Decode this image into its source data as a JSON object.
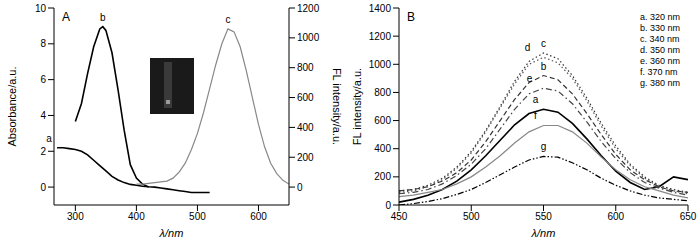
{
  "chart_data": [
    {
      "type": "line",
      "panel_label": "A",
      "xlabel": "λ/nm",
      "ylabel": "Absorbance/a.u.",
      "y2label": "FL intensity/a.u.",
      "xlim": [
        265,
        650
      ],
      "xticks": [
        300,
        400,
        500,
        600
      ],
      "ylim": [
        -1,
        10
      ],
      "yticks": [
        0,
        2,
        4,
        6,
        8,
        10
      ],
      "y2lim": [
        -120,
        1200
      ],
      "y2ticks": [
        0,
        200,
        400,
        600,
        800,
        1000,
        1200
      ],
      "series": [
        {
          "name": "a",
          "color": "#000000",
          "line_style": "solid",
          "axis": "y",
          "x": [
            270,
            280,
            290,
            300,
            310,
            320,
            330,
            340,
            350,
            360,
            370,
            380,
            390,
            400,
            410,
            420,
            430,
            440,
            450,
            460,
            470,
            480,
            490,
            500,
            510,
            520
          ],
          "values": [
            2.2,
            2.2,
            2.15,
            2.1,
            2.0,
            1.8,
            1.5,
            1.2,
            0.9,
            0.6,
            0.4,
            0.25,
            0.15,
            0.1,
            0.05,
            0.02,
            0,
            -0.05,
            -0.1,
            -0.15,
            -0.2,
            -0.25,
            -0.3,
            -0.3,
            -0.3,
            -0.3
          ]
        },
        {
          "name": "b",
          "color": "#000000",
          "line_style": "solid",
          "axis": "y2",
          "x": [
            300,
            310,
            320,
            330,
            340,
            345,
            350,
            360,
            370,
            380,
            390,
            400,
            410,
            420
          ],
          "values": [
            440,
            560,
            760,
            940,
            1060,
            1075,
            1050,
            900,
            650,
            380,
            150,
            60,
            20,
            0
          ]
        },
        {
          "name": "c",
          "color": "#888888",
          "line_style": "solid",
          "axis": "y2",
          "x": [
            400,
            410,
            420,
            430,
            440,
            450,
            460,
            470,
            480,
            490,
            500,
            510,
            520,
            530,
            540,
            550,
            560,
            570,
            580,
            590,
            600,
            610,
            620,
            630,
            640,
            650
          ],
          "values": [
            20,
            20,
            25,
            30,
            35,
            40,
            60,
            100,
            160,
            250,
            360,
            500,
            660,
            820,
            960,
            1060,
            1040,
            940,
            780,
            600,
            420,
            270,
            160,
            90,
            45,
            20
          ]
        }
      ]
    },
    {
      "type": "line",
      "panel_label": "B",
      "xlabel": "λ/nm",
      "ylabel": "FL intensity/a.u.",
      "legend": "upper right",
      "xlim": [
        450,
        650
      ],
      "xticks": [
        450,
        500,
        550,
        600,
        650
      ],
      "ylim": [
        0,
        1400
      ],
      "yticks": [
        0,
        200,
        400,
        600,
        800,
        1000,
        1200,
        1400
      ],
      "x": [
        450,
        460,
        470,
        480,
        490,
        500,
        510,
        520,
        530,
        540,
        550,
        560,
        570,
        580,
        590,
        600,
        610,
        620,
        630,
        640,
        650
      ],
      "series": [
        {
          "name": "a. 320 nm",
          "label": "a",
          "color": "#000000",
          "line_style": "solid",
          "values": [
            20,
            40,
            70,
            110,
            170,
            250,
            350,
            460,
            570,
            650,
            680,
            660,
            580,
            470,
            350,
            240,
            160,
            110,
            130,
            200,
            180
          ]
        },
        {
          "name": "b. 330 nm",
          "label": "b",
          "color": "#333333",
          "line_style": "dashed",
          "values": [
            100,
            110,
            130,
            170,
            230,
            320,
            450,
            600,
            750,
            870,
            920,
            890,
            790,
            650,
            500,
            360,
            250,
            180,
            130,
            100,
            90
          ]
        },
        {
          "name": "c. 340 nm",
          "label": "c",
          "color": "#333333",
          "line_style": "dotted",
          "values": [
            100,
            110,
            140,
            190,
            270,
            380,
            530,
            700,
            880,
            1020,
            1080,
            1040,
            920,
            760,
            580,
            420,
            290,
            200,
            140,
            110,
            90
          ]
        },
        {
          "name": "d. 350 nm",
          "label": "d",
          "color": "#555555",
          "line_style": "dotted",
          "values": [
            90,
            100,
            130,
            180,
            260,
            370,
            520,
            690,
            860,
            1000,
            1050,
            1010,
            900,
            740,
            560,
            400,
            280,
            190,
            130,
            100,
            80
          ]
        },
        {
          "name": "e. 360 nm",
          "label": "e",
          "color": "#444444",
          "line_style": "dashdot",
          "values": [
            80,
            90,
            110,
            150,
            210,
            290,
            400,
            540,
            680,
            790,
            830,
            810,
            720,
            590,
            450,
            330,
            230,
            160,
            120,
            90,
            70
          ]
        },
        {
          "name": "f. 370 nm",
          "label": "f",
          "color": "#888888",
          "line_style": "solid",
          "values": [
            60,
            70,
            90,
            110,
            150,
            200,
            270,
            350,
            440,
            520,
            565,
            565,
            520,
            440,
            340,
            250,
            180,
            130,
            100,
            70,
            50
          ]
        },
        {
          "name": "g. 380 nm",
          "label": "g",
          "color": "#000000",
          "line_style": "dashdotdot",
          "values": [
            0,
            10,
            25,
            45,
            75,
            110,
            160,
            215,
            270,
            320,
            345,
            340,
            300,
            250,
            190,
            140,
            100,
            70,
            50,
            40,
            30
          ]
        }
      ]
    }
  ]
}
